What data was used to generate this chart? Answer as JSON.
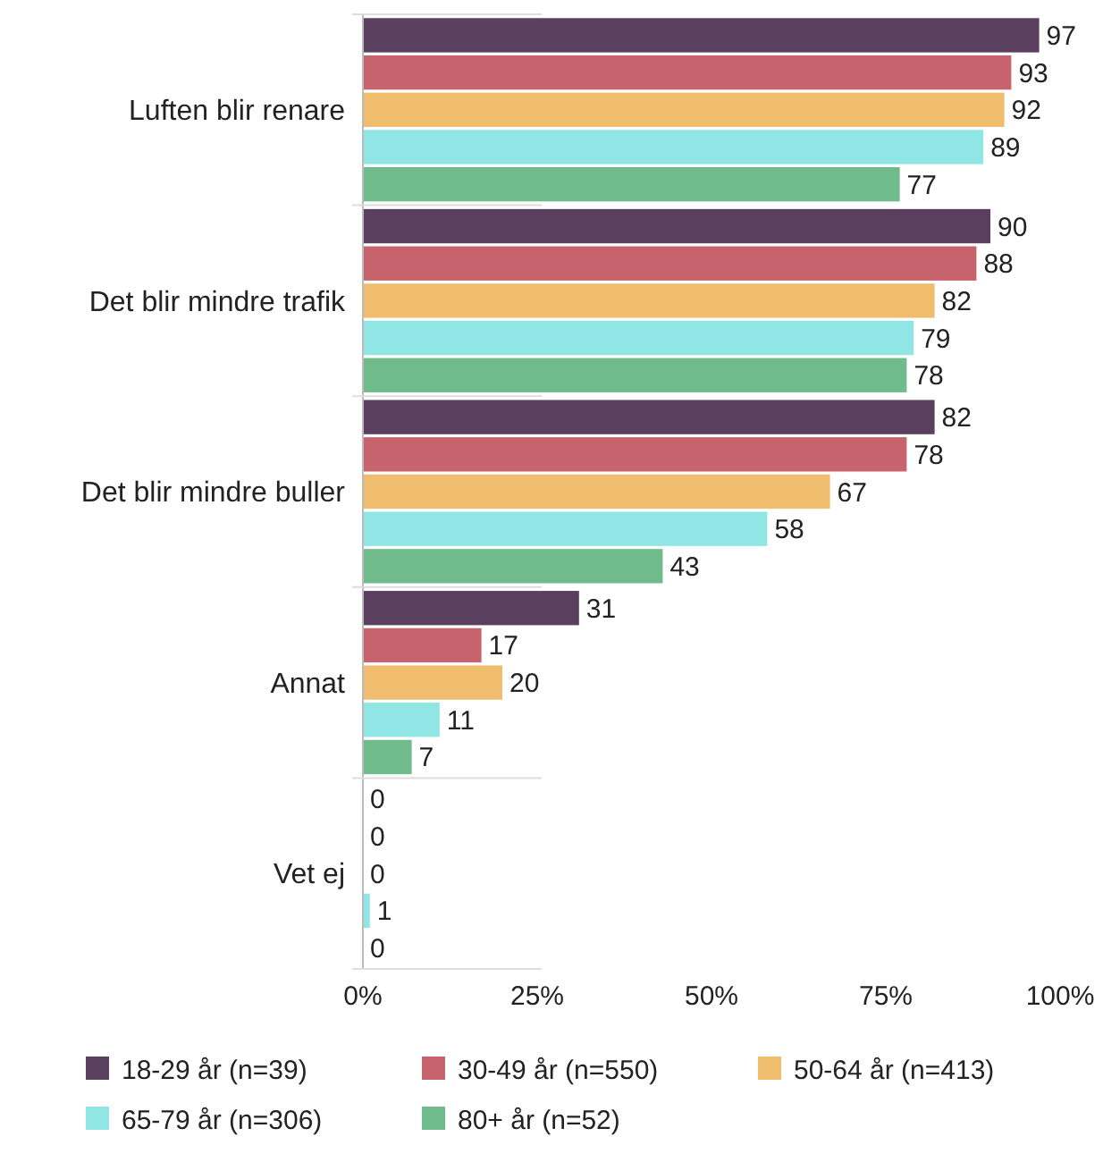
{
  "chart_data": {
    "type": "bar",
    "orientation": "horizontal",
    "categories": [
      "Luften blir renare",
      "Det blir mindre trafik",
      "Det blir mindre buller",
      "Annat",
      "Vet ej"
    ],
    "series": [
      {
        "name": "18-29 år (n=39)",
        "color": "#5b3f5e",
        "values": [
          97,
          90,
          82,
          31,
          0
        ]
      },
      {
        "name": "30-49 år (n=550)",
        "color": "#c7636c",
        "values": [
          93,
          88,
          78,
          17,
          0
        ]
      },
      {
        "name": "50-64 år (n=413)",
        "color": "#f0bd6e",
        "values": [
          92,
          82,
          67,
          20,
          0
        ]
      },
      {
        "name": "65-79 år (n=306)",
        "color": "#8fe6e4",
        "values": [
          89,
          79,
          58,
          11,
          1
        ]
      },
      {
        "name": "80+ år (n=52)",
        "color": "#6fbb8b",
        "values": [
          77,
          78,
          43,
          7,
          0
        ]
      }
    ],
    "xlim": [
      0,
      100
    ],
    "xticks": [
      {
        "value": 0,
        "label": "0%"
      },
      {
        "value": 25,
        "label": "25%"
      },
      {
        "value": 50,
        "label": "50%"
      },
      {
        "value": 75,
        "label": "75%"
      },
      {
        "value": 100,
        "label": "100%"
      }
    ],
    "data_labels": true,
    "grid": false,
    "legend": "bottom"
  }
}
